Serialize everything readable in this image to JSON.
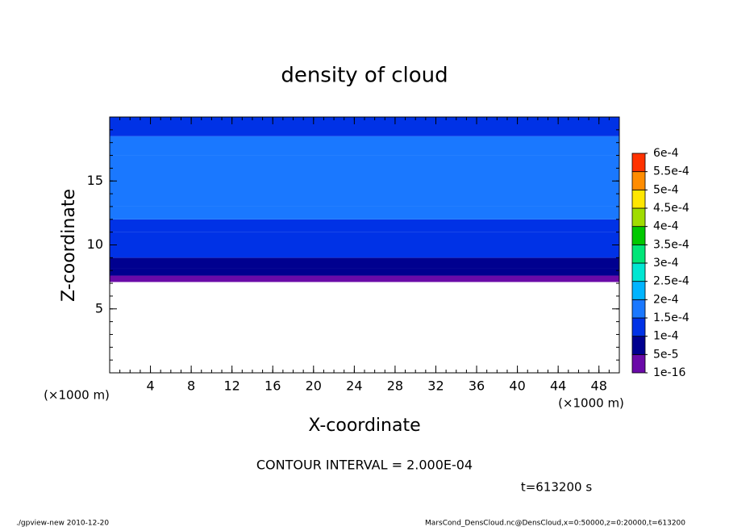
{
  "chart_data": {
    "type": "contour",
    "title": "density of cloud",
    "xlabel": "X-coordinate",
    "ylabel": "Z-coordinate",
    "x_unit": "(×1000 m)",
    "y_unit": "(×1000 m)",
    "contour_interval": "CONTOUR INTERVAL = 2.000E-04",
    "time_label": "t=613200 s",
    "footer_left": "./gpview-new  2010-12-20",
    "footer_right": "MarsCond_DensCloud.nc@DensCloud,x=0:50000,z=0:20000,t=613200",
    "xlim": [
      0,
      50
    ],
    "ylim": [
      0,
      20
    ],
    "xticks": [
      4,
      8,
      12,
      16,
      20,
      24,
      28,
      32,
      36,
      40,
      44,
      48
    ],
    "yticks": [
      5,
      10,
      15
    ],
    "z_edges": [
      7.1,
      7.6,
      8.2,
      9,
      10,
      11,
      12,
      13,
      17,
      18.5,
      20
    ],
    "values": [
      3e-05,
      7e-05,
      9e-05,
      0.00012,
      0.00013,
      0.00014,
      0.00015,
      0.00016,
      0.00015,
      0.00014
    ],
    "colorbar": {
      "levels": [
        {
          "value": 1e-16,
          "label": "1e-16"
        },
        {
          "value": 5e-05,
          "label": "5e-5"
        },
        {
          "value": 0.0001,
          "label": "1e-4"
        },
        {
          "value": 0.00015,
          "label": "1.5e-4"
        },
        {
          "value": 0.0002,
          "label": "2e-4"
        },
        {
          "value": 0.00025,
          "label": "2.5e-4"
        },
        {
          "value": 0.0003,
          "label": "3e-4"
        },
        {
          "value": 0.00035,
          "label": "3.5e-4"
        },
        {
          "value": 0.0004,
          "label": "4e-4"
        },
        {
          "value": 0.00045,
          "label": "4.5e-4"
        },
        {
          "value": 0.0005,
          "label": "5e-4"
        },
        {
          "value": 0.00055,
          "label": "5.5e-4"
        },
        {
          "value": 0.0006,
          "label": "6e-4"
        }
      ],
      "colors": [
        "#6a0aa8",
        "#00008f",
        "#0032e6",
        "#1a78ff",
        "#00b4ff",
        "#00e6d2",
        "#00e678",
        "#00c800",
        "#a0dc00",
        "#ffe600",
        "#ff8c00",
        "#ff3200"
      ]
    }
  }
}
